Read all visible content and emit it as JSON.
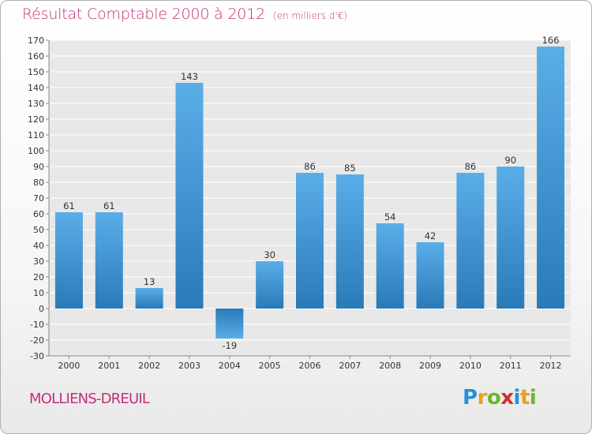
{
  "chart_data": {
    "type": "bar",
    "title": "Résultat Comptable 2000 à 2012",
    "subtitle": "(en milliers d'€)",
    "categories": [
      "2000",
      "2001",
      "2002",
      "2003",
      "2004",
      "2005",
      "2006",
      "2007",
      "2008",
      "2009",
      "2010",
      "2011",
      "2012"
    ],
    "values": [
      61,
      61,
      13,
      143,
      -19,
      30,
      86,
      85,
      54,
      42,
      86,
      90,
      166
    ],
    "data_labels": [
      "61",
      "61",
      "13",
      "143",
      "-19",
      "30",
      "86",
      "85",
      "54",
      "42",
      "86",
      "90",
      "166"
    ],
    "ylim": [
      -30,
      170
    ],
    "yticks": [
      -30,
      -20,
      -10,
      0,
      10,
      20,
      30,
      40,
      50,
      60,
      70,
      80,
      90,
      100,
      110,
      120,
      130,
      140,
      150,
      160,
      170
    ],
    "grid": true,
    "colors": {
      "bar_light": "#5aaee8",
      "bar_dark": "#2a7ab8",
      "text_accent": "#c0307a"
    }
  },
  "footer": {
    "city": "MOLLIENS-DREUIL",
    "logo_text": "Proxiti"
  }
}
